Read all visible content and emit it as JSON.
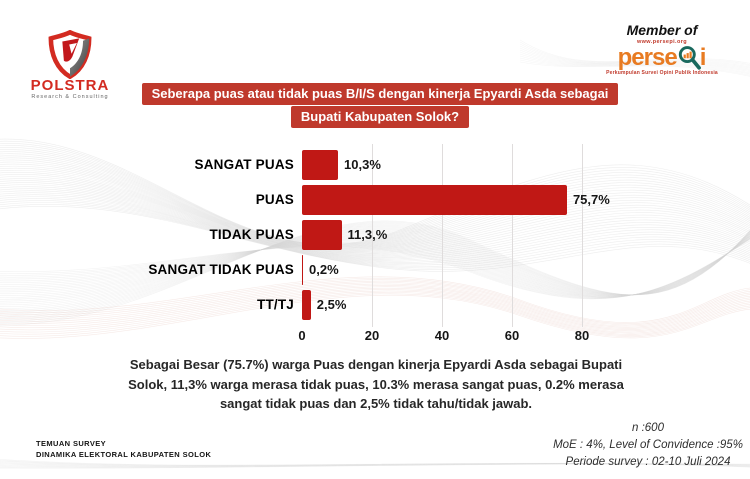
{
  "header": {
    "polstra": {
      "name": "POLSTRA",
      "tagline": "Research & Consulting"
    },
    "member_of": "Member of",
    "persepi": {
      "url": "www.persepi.org",
      "brand": "perse",
      "brand_suffix": "i",
      "tagline": "Perkumpulan Survei Opini Publik Indonesia"
    }
  },
  "title": {
    "line1": "Seberapa puas atau tidak puas B/I/S dengan kinerja Epyardi Asda sebagai",
    "line2": "Bupati Kabupaten Solok?"
  },
  "chart_data": {
    "type": "bar",
    "orientation": "horizontal",
    "categories": [
      "SANGAT PUAS",
      "PUAS",
      "TIDAK PUAS",
      "SANGAT TIDAK PUAS",
      "TT/TJ"
    ],
    "values": [
      10.3,
      75.7,
      11.3,
      0.2,
      2.5
    ],
    "value_labels": [
      "10,3%",
      "75,7%",
      "11,3,%",
      "0,2%",
      "2,5%"
    ],
    "x_ticks": [
      0,
      20,
      40,
      60,
      80
    ],
    "xlim": [
      0,
      88
    ],
    "grid": true,
    "legend": "none",
    "bar_color": "#c01815"
  },
  "summary": "Sebagai Besar (75.7%) warga Puas dengan kinerja Epyardi Asda sebagai Bupati Solok, 11,3% warga merasa tidak puas, 10.3% merasa sangat puas, 0.2% merasa sangat tidak puas dan 2,5% tidak tahu/tidak jawab.",
  "footer": {
    "left_line1": "TEMUAN SURVEY",
    "left_line2": "DINAMIKA ELEKTORAL KABUPATEN SOLOK",
    "right_line1": "n :600",
    "right_line2": "MoE : 4%, Level of Convidence :95%",
    "right_line3": "Periode survey : 02-10 Juli 2024"
  },
  "colors": {
    "banner_red": "#bf392c",
    "bar_red": "#c01815",
    "polstra_red": "#d32b21",
    "persepi_orange": "#e87b22",
    "persepi_teal": "#19695e",
    "persepi_small_red": "#c0392b",
    "grid_gray": "#dfdcdc"
  }
}
